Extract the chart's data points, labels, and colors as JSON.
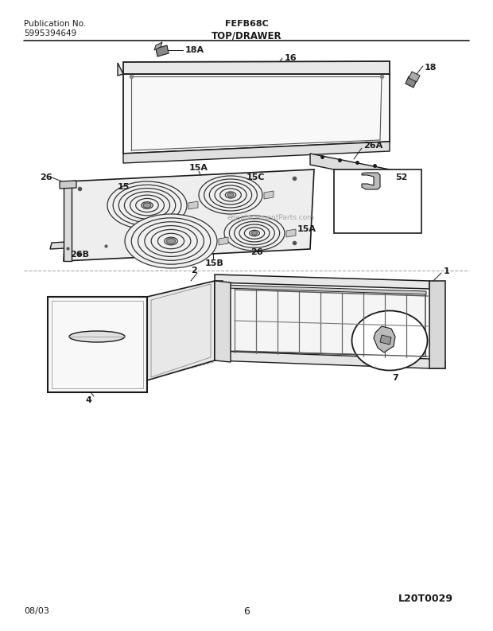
{
  "title_center": "FEFB68C",
  "title_left1": "Publication No.",
  "title_left2": "5995394649",
  "section_title": "TOP/DRAWER",
  "bottom_left": "08/03",
  "bottom_center": "6",
  "bottom_right": "L20T0029",
  "bg_color": "#ffffff",
  "lc": "#1a1a1a",
  "watermark": "eReplacementParts.com",
  "figsize": [
    6.2,
    7.93
  ],
  "dpi": 100
}
